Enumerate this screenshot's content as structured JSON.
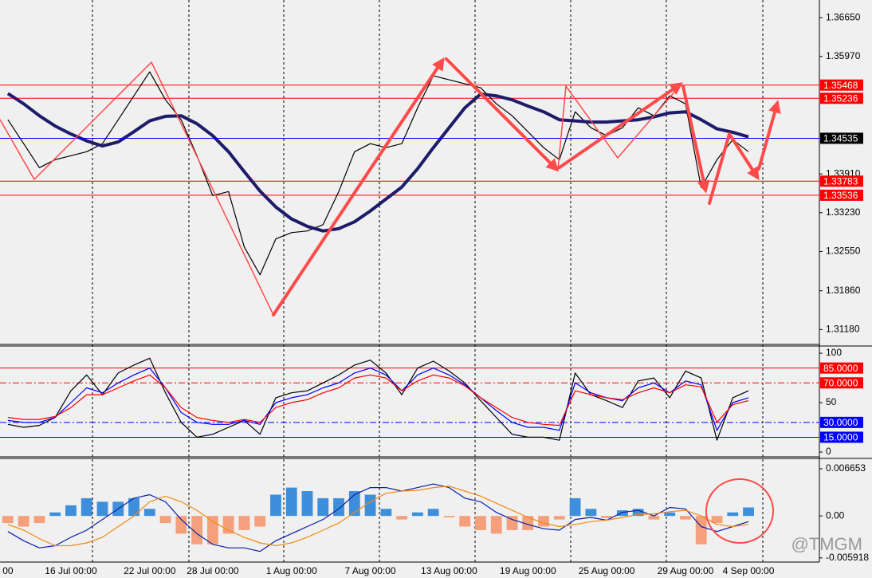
{
  "chart_data": [
    {
      "type": "line",
      "categories": [
        "00",
        null,
        null,
        null,
        "16 Jul 00:00",
        null,
        null,
        null,
        null,
        "22 Jul 00:00",
        null,
        null,
        null,
        "28 Jul 00:00",
        null,
        null,
        null,
        null,
        "1 Aug 00:00",
        null,
        null,
        null,
        null,
        "7 Aug 00:00",
        null,
        null,
        null,
        null,
        "13 Aug 00:00",
        null,
        null,
        null,
        null,
        "19 Aug 00:00",
        null,
        null,
        null,
        null,
        "25 Aug 00:00",
        null,
        null,
        null,
        null,
        "29 Aug 00:00",
        null,
        null,
        null,
        "4 Sep 00:00",
        null,
        null,
        null,
        null
      ],
      "series": [
        {
          "color": "#000000",
          "values": [
            1.3486,
            1.3444,
            1.3402,
            1.3416,
            1.3423,
            1.343,
            1.3444,
            1.3486,
            1.3528,
            1.357,
            1.3521,
            1.3486,
            1.3423,
            1.3353,
            1.336,
            1.3263,
            1.3214,
            1.3277,
            1.3288,
            1.3291,
            1.3302,
            1.336,
            1.343,
            1.3444,
            1.3437,
            1.3444,
            1.3507,
            1.3563,
            1.3556,
            1.3549,
            1.3542,
            1.3514,
            1.3493,
            1.3465,
            1.3437,
            1.3416,
            1.35,
            1.3472,
            1.3458,
            1.3472,
            1.3507,
            1.3493,
            1.3528,
            1.3514,
            1.3367,
            1.3416,
            1.3451,
            1.343,
            null,
            null,
            null,
            null
          ]
        },
        {
          "color": "#1c1c6b",
          "values": [
            1.3532,
            1.3514,
            1.3493,
            1.3475,
            1.3461,
            1.3449,
            1.344,
            1.3447,
            1.3465,
            1.3484,
            1.3492,
            1.3493,
            1.3479,
            1.3458,
            1.343,
            1.3395,
            1.3361,
            1.3333,
            1.3312,
            1.3299,
            1.3291,
            1.3295,
            1.3307,
            1.3326,
            1.3347,
            1.3368,
            1.34,
            1.3437,
            1.3472,
            1.3507,
            1.3531,
            1.3528,
            1.3521,
            1.351,
            1.35,
            1.3486,
            1.3484,
            1.3482,
            1.3482,
            1.3484,
            1.3486,
            1.3491,
            1.3498,
            1.35,
            1.3486,
            1.347,
            1.3464,
            1.3456,
            null,
            null,
            null,
            null
          ]
        }
      ],
      "ylim": [
        1.3092,
        1.3696
      ],
      "yticks": [
        {
          "value": 1.3665,
          "label": "1.36650"
        },
        {
          "value": 1.3597,
          "label": "1.35970"
        },
        {
          "value": 1.3391,
          "label": "1.33910"
        },
        {
          "value": 1.3323,
          "label": "1.33230"
        },
        {
          "value": 1.3255,
          "label": "1.32550"
        },
        {
          "value": 1.3186,
          "label": "1.31860"
        },
        {
          "value": 1.3118,
          "label": "1.31180"
        }
      ],
      "levels": [
        {
          "value": 1.35468,
          "color": "#ff0000"
        },
        {
          "value": 1.35236,
          "color": "#ff0000"
        },
        {
          "value": 1.33783,
          "color": "#ff0000"
        },
        {
          "value": 1.33536,
          "color": "#ff0000"
        }
      ],
      "current_price": {
        "value": 1.34535,
        "color": "#0000ff"
      }
    },
    {
      "type": "line",
      "series": [
        {
          "color": "#000000",
          "values": [
            28,
            25,
            27,
            35,
            62,
            78,
            58,
            80,
            88,
            95,
            60,
            30,
            15,
            18,
            25,
            32,
            18,
            55,
            60,
            62,
            70,
            78,
            88,
            93,
            80,
            58,
            85,
            92,
            82,
            70,
            52,
            35,
            18,
            15,
            15,
            12,
            80,
            58,
            52,
            45,
            72,
            75,
            55,
            82,
            75,
            12,
            55,
            62,
            null,
            null,
            null,
            null
          ]
        },
        {
          "color": "#0000ff",
          "values": [
            32,
            30,
            30,
            35,
            50,
            65,
            60,
            70,
            78,
            85,
            65,
            40,
            30,
            28,
            28,
            32,
            28,
            50,
            55,
            58,
            65,
            70,
            80,
            85,
            78,
            62,
            78,
            85,
            78,
            68,
            55,
            42,
            30,
            25,
            25,
            22,
            70,
            60,
            55,
            52,
            65,
            70,
            60,
            72,
            68,
            22,
            50,
            55,
            null,
            null,
            null,
            null
          ]
        },
        {
          "color": "#ff0000",
          "values": [
            35,
            33,
            33,
            36,
            45,
            58,
            58,
            65,
            72,
            78,
            65,
            45,
            35,
            32,
            30,
            33,
            30,
            45,
            50,
            53,
            60,
            65,
            75,
            78,
            75,
            62,
            72,
            78,
            75,
            67,
            55,
            45,
            35,
            30,
            28,
            27,
            62,
            58,
            55,
            53,
            60,
            65,
            60,
            68,
            66,
            30,
            48,
            52,
            null,
            null,
            null,
            null
          ]
        }
      ],
      "ylim": [
        -4,
        106.5
      ],
      "yticks": [
        0,
        50,
        100
      ],
      "levels": [
        {
          "value": 85,
          "label": "85.0000",
          "color": "#ff0000"
        },
        {
          "value": 70,
          "label": "70.0000",
          "color": "#ff0000",
          "dash": true
        },
        {
          "value": 30,
          "label": "30.0000",
          "color": "#0000ff",
          "dash": true
        },
        {
          "value": 15,
          "label": "15.0000",
          "color": "#0000ff"
        }
      ]
    },
    {
      "type": "bar",
      "series": [
        {
          "type": "bar",
          "color": "#3d8fdc",
          "negative_color": "#f4a07c",
          "values": [
            -0.001,
            -0.0015,
            -0.001,
            0.0005,
            0.0015,
            0.0025,
            0.002,
            0.002,
            0.0025,
            0.001,
            -0.001,
            -0.0025,
            -0.004,
            -0.004,
            -0.0025,
            -0.002,
            -0.0015,
            0.003,
            0.004,
            0.0035,
            0.0025,
            0.0025,
            0.0035,
            0.003,
            0.001,
            -0.0005,
            0.0005,
            0.001,
            -0.0002,
            -0.0015,
            -0.002,
            -0.0025,
            -0.002,
            -0.002,
            -0.0015,
            -0.0005,
            0.0025,
            0.001,
            -0.0003,
            0.0008,
            0.001,
            -0.0005,
            0.0005,
            -0.0005,
            -0.004,
            -0.001,
            0.0005,
            0.0012,
            null,
            null,
            null,
            null
          ]
        },
        {
          "type": "line",
          "color": "#0a1fa8",
          "values": [
            -0.0022,
            -0.0035,
            -0.0045,
            -0.0042,
            -0.003,
            -0.002,
            -0.0005,
            0.001,
            0.0025,
            0.003,
            0.002,
            -0.0005,
            -0.0025,
            -0.004,
            -0.0045,
            -0.0045,
            -0.005,
            -0.0035,
            -0.0025,
            -0.0015,
            -0.0005,
            0.001,
            0.003,
            0.004,
            0.004,
            0.0035,
            0.004,
            0.0045,
            0.004,
            0.0025,
            0.002,
            0.0005,
            -0.0005,
            -0.0012,
            -0.0018,
            -0.002,
            -0.0005,
            -0.0002,
            -0.0006,
            0.0005,
            0.0008,
            0.0,
            0.0012,
            0.001,
            -0.0015,
            -0.0022,
            -0.0015,
            -0.0008,
            null,
            null,
            null,
            null
          ]
        },
        {
          "type": "line",
          "color": "#f08a10",
          "values": [
            -0.0012,
            -0.002,
            -0.0032,
            -0.0042,
            -0.0042,
            -0.0038,
            -0.003,
            -0.0015,
            0,
            0.002,
            0.0028,
            0.002,
            0.0008,
            -0.0008,
            -0.002,
            -0.003,
            -0.0038,
            -0.0042,
            -0.0038,
            -0.003,
            -0.002,
            -0.001,
            0.0005,
            0.002,
            0.0032,
            0.0035,
            0.0036,
            0.004,
            0.0042,
            0.0035,
            0.0028,
            0.0018,
            0.0008,
            -0.0002,
            -0.001,
            -0.0015,
            -0.0012,
            -0.0008,
            -0.0006,
            -0.0002,
            0.0002,
            0.0003,
            0.0006,
            0.0008,
            0.0,
            -0.0012,
            -0.0015,
            -0.0012,
            null,
            null,
            null,
            null
          ]
        }
      ],
      "ylim": [
        -0.0065,
        0.008
      ],
      "yticks": [
        0.006653,
        {
          "value": 0,
          "label": "0.00"
        },
        -0.005918
      ]
    }
  ],
  "watermark": "@TMGM"
}
